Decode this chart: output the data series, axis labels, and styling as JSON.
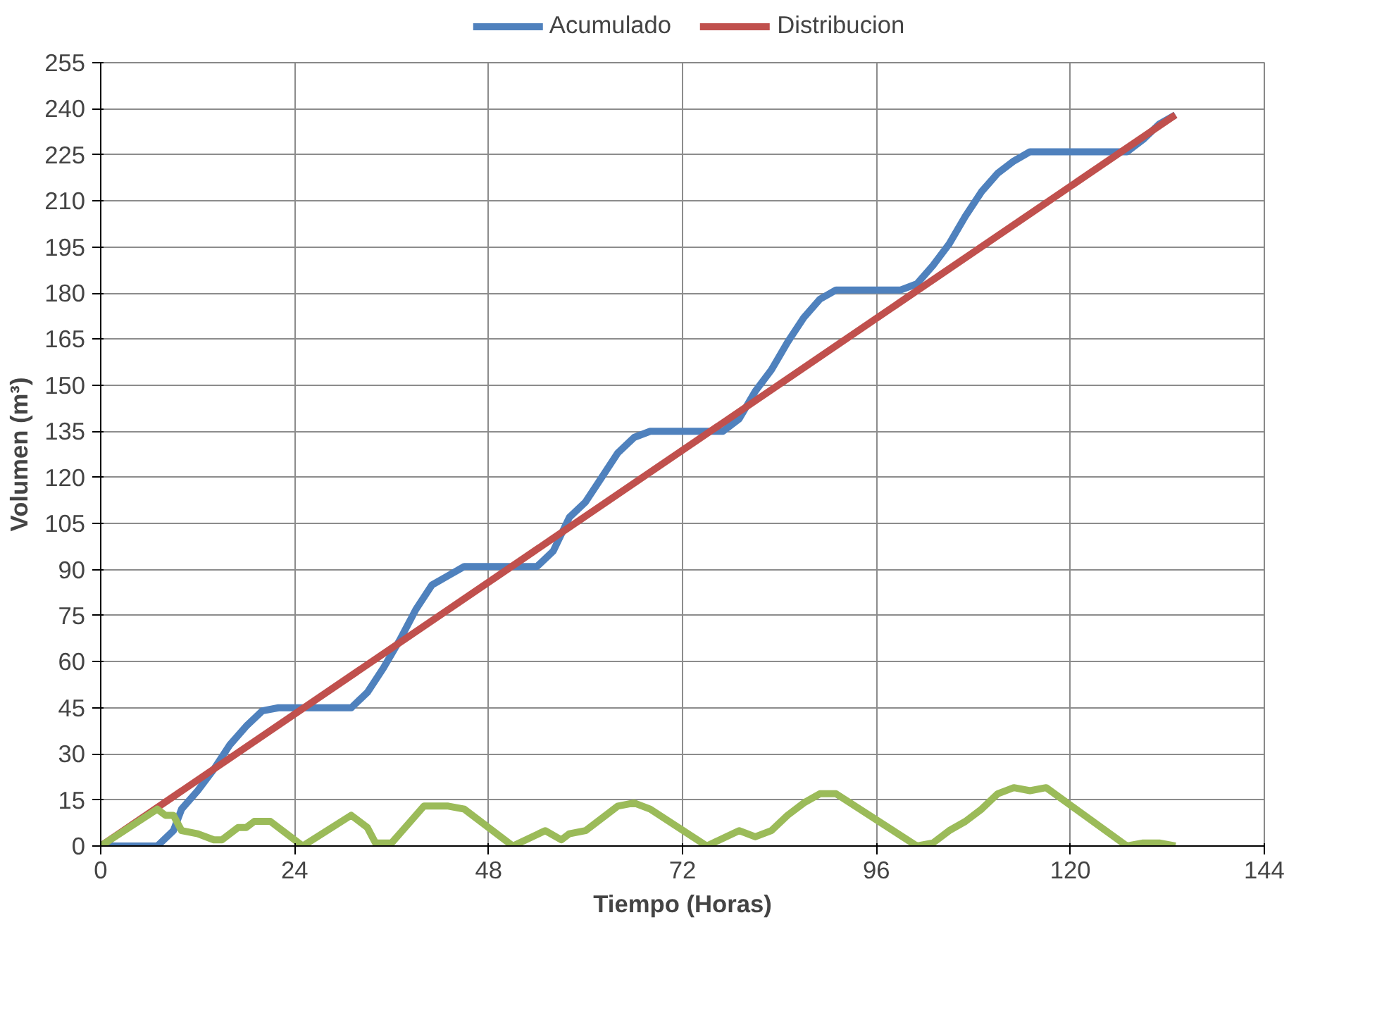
{
  "chart_data": {
    "type": "line",
    "xlabel": "Tiempo (Horas)",
    "ylabel": "Volumen (m³)",
    "xlim": [
      0,
      144
    ],
    "xticks": [
      0,
      24,
      48,
      72,
      96,
      120,
      144
    ],
    "ylim": [
      0,
      255
    ],
    "yticks": [
      0,
      15,
      30,
      45,
      60,
      75,
      90,
      105,
      120,
      135,
      150,
      165,
      180,
      195,
      210,
      225,
      240,
      255
    ],
    "grid": true,
    "legend": "top",
    "marker": "none",
    "line_style": "solid",
    "series": [
      {
        "name": "Acumulado",
        "color": "#4f81bd",
        "x": [
          0,
          7,
          9,
          10,
          12,
          14,
          16,
          18,
          20,
          22,
          31,
          33,
          35,
          37,
          39,
          41,
          43,
          45,
          47,
          54,
          56,
          58,
          60,
          62,
          64,
          66,
          68,
          77,
          79,
          81,
          83,
          85,
          87,
          89,
          91,
          99,
          101,
          103,
          105,
          107,
          109,
          111,
          113,
          115,
          127,
          129,
          131,
          133
        ],
        "values": [
          0,
          0,
          5,
          12,
          18,
          25,
          33,
          39,
          44,
          45,
          45,
          50,
          58,
          67,
          77,
          85,
          88,
          91,
          91,
          91,
          96,
          107,
          112,
          120,
          128,
          133,
          135,
          135,
          139,
          148,
          155,
          164,
          172,
          178,
          181,
          181,
          183,
          189,
          196,
          205,
          213,
          219,
          223,
          226,
          226,
          230,
          235,
          238
        ]
      },
      {
        "name": "Distribucion",
        "color": "#c0504d",
        "x": [
          0,
          133
        ],
        "values": [
          0,
          238
        ]
      },
      {
        "color": "#9bbb59",
        "x": [
          0,
          7,
          8,
          9,
          10,
          12,
          14,
          15,
          17,
          18,
          19,
          21,
          25,
          31,
          33,
          34,
          36,
          38,
          40,
          43,
          45,
          51,
          55,
          57,
          58,
          60,
          62,
          64,
          66,
          68,
          75,
          79,
          81,
          83,
          85,
          87,
          89,
          91,
          101,
          103,
          105,
          107,
          109,
          111,
          113,
          115,
          117,
          127,
          129,
          131,
          133
        ],
        "values": [
          0,
          12,
          10,
          10,
          5,
          4,
          2,
          2,
          6,
          6,
          8,
          8,
          0,
          10,
          6,
          1,
          1,
          7,
          13,
          13,
          12,
          0,
          5,
          2,
          4,
          5,
          9,
          13,
          14,
          12,
          0,
          5,
          3,
          5,
          10,
          14,
          17,
          17,
          0,
          1,
          5,
          8,
          12,
          17,
          19,
          18,
          19,
          0,
          1,
          1,
          0
        ]
      }
    ]
  }
}
